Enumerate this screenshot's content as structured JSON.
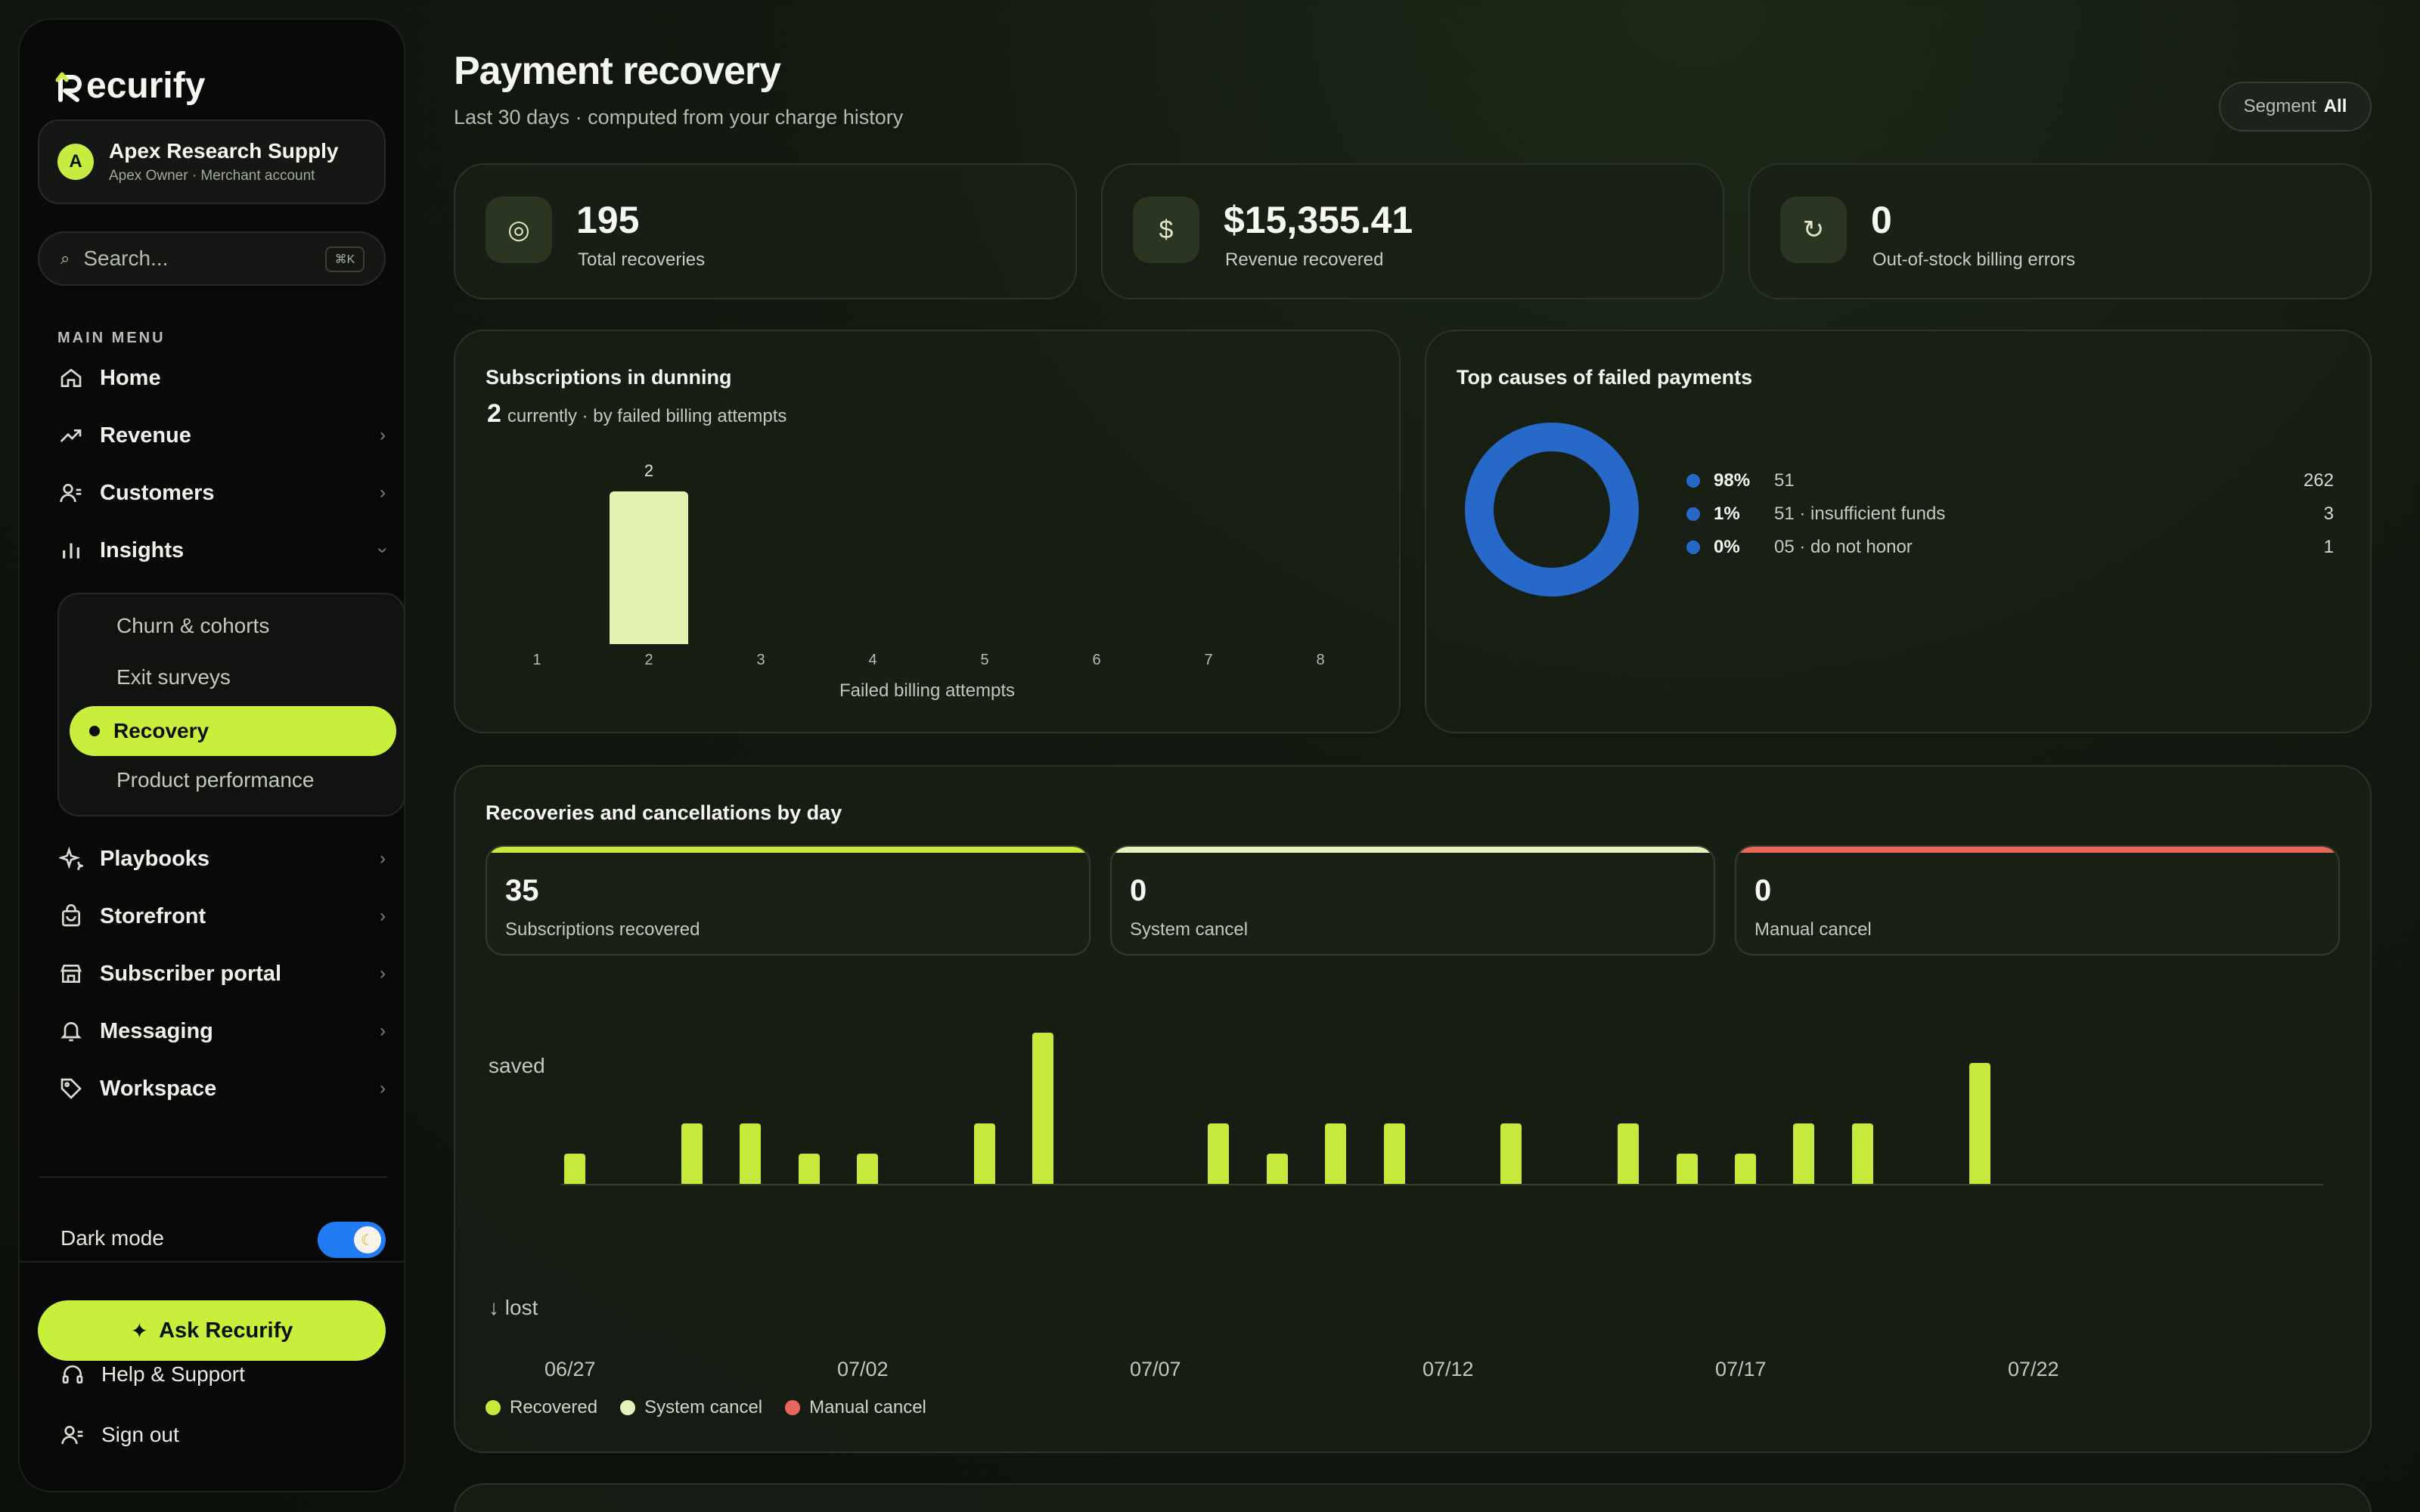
{
  "brand": {
    "name": "ecurify",
    "accent": "#c9ef3d"
  },
  "account": {
    "initial": "A",
    "name": "Apex Research Supply",
    "subtitle": "Apex Owner · Merchant account"
  },
  "search": {
    "placeholder": "Search...",
    "shortcut": "⌘K"
  },
  "sidebar": {
    "heading": "MAIN MENU",
    "items": [
      {
        "label": "Home",
        "icon": "home-icon"
      },
      {
        "label": "Revenue",
        "icon": "trending-up-icon"
      },
      {
        "label": "Customers",
        "icon": "users-icon"
      },
      {
        "label": "Insights",
        "icon": "bar-chart-icon"
      },
      {
        "label": "Playbooks",
        "icon": "sparkle-icon"
      },
      {
        "label": "Storefront",
        "icon": "bag-icon"
      },
      {
        "label": "Subscriber portal",
        "icon": "store-icon"
      },
      {
        "label": "Messaging",
        "icon": "bell-icon"
      },
      {
        "label": "Workspace",
        "icon": "tag-icon"
      }
    ],
    "insights_sub": [
      "Churn & cohorts",
      "Exit surveys",
      "Recovery",
      "Product performance"
    ],
    "dark_mode_label": "Dark mode",
    "dark_mode_on": true,
    "ask_label": "Ask Recurify",
    "help_label": "Help & Support",
    "signout_label": "Sign out"
  },
  "header": {
    "title": "Payment recovery",
    "subtitle": "Last 30 days · computed from your charge history",
    "segment_key": "Segment",
    "segment_value": "All"
  },
  "kpis": [
    {
      "value": "195",
      "label": "Total recoveries",
      "icon": "target-icon"
    },
    {
      "value": "$15,355.41",
      "label": "Revenue recovered",
      "icon": "dollar-icon"
    },
    {
      "value": "0",
      "label": "Out-of-stock billing errors",
      "icon": "refresh-icon"
    }
  ],
  "dunning": {
    "title": "Subscriptions in dunning",
    "count": "2",
    "count_suffix": "currently · by failed billing attempts",
    "xlabel": "Failed billing attempts",
    "bar_label": "2"
  },
  "causes": {
    "title": "Top causes of failed payments",
    "color": "#2669c9",
    "rows": [
      {
        "pct": "98%",
        "label": "51",
        "count": "262"
      },
      {
        "pct": "1%",
        "label": "51 · insufficient funds",
        "count": "3"
      },
      {
        "pct": "0%",
        "label": "05 · do not honor",
        "count": "1"
      }
    ]
  },
  "daily": {
    "title": "Recoveries and cancellations by day",
    "stats": [
      {
        "value": "35",
        "label": "Subscriptions recovered",
        "color": "#c5ea3c"
      },
      {
        "value": "0",
        "label": "System cancel",
        "color": "#e5f2bd"
      },
      {
        "value": "0",
        "label": "Manual cancel",
        "color": "#e8665a"
      }
    ],
    "saved_label": "saved",
    "lost_label": "↓ lost",
    "legend": [
      {
        "label": "Recovered",
        "color": "#c5ea3c"
      },
      {
        "label": "System cancel",
        "color": "#e5f2bd"
      },
      {
        "label": "Manual cancel",
        "color": "#e8665a"
      }
    ]
  },
  "chart_data": [
    {
      "type": "bar",
      "title": "Subscriptions in dunning",
      "xlabel": "Failed billing attempts",
      "ylabel": "",
      "categories": [
        "1",
        "2",
        "3",
        "4",
        "5",
        "6",
        "7",
        "8"
      ],
      "values": [
        0,
        2,
        0,
        0,
        0,
        0,
        0,
        0
      ]
    },
    {
      "type": "pie",
      "title": "Top causes of failed payments",
      "categories": [
        "51",
        "51 · insufficient funds",
        "05 · do not honor"
      ],
      "values": [
        262,
        3,
        1
      ],
      "percent": [
        98,
        1,
        0
      ]
    },
    {
      "type": "bar",
      "title": "Recoveries and cancellations by day",
      "x": [
        "06/27",
        "06/28",
        "06/29",
        "06/30",
        "07/01",
        "07/02",
        "07/03",
        "07/04",
        "07/05",
        "07/06",
        "07/07",
        "07/08",
        "07/09",
        "07/10",
        "07/11",
        "07/12",
        "07/13",
        "07/14",
        "07/15",
        "07/16",
        "07/17",
        "07/18",
        "07/19",
        "07/20",
        "07/21",
        "07/22",
        "07/23",
        "07/24",
        "07/25",
        "07/26",
        "07/27"
      ],
      "xticks": [
        "06/27",
        "07/02",
        "07/07",
        "07/12",
        "07/17",
        "07/22"
      ],
      "series": [
        {
          "name": "Recovered",
          "values": [
            1,
            0,
            2,
            2,
            1,
            1,
            0,
            2,
            5,
            0,
            0,
            2,
            1,
            2,
            2,
            0,
            2,
            0,
            2,
            1,
            1,
            2,
            2,
            0,
            4,
            0,
            0,
            0,
            0,
            0,
            0
          ]
        },
        {
          "name": "System cancel",
          "values": [
            0,
            0,
            0,
            0,
            0,
            0,
            0,
            0,
            0,
            0,
            0,
            0,
            0,
            0,
            0,
            0,
            0,
            0,
            0,
            0,
            0,
            0,
            0,
            0,
            0,
            0,
            0,
            0,
            0,
            0,
            0
          ]
        },
        {
          "name": "Manual cancel",
          "values": [
            0,
            0,
            0,
            0,
            0,
            0,
            0,
            0,
            0,
            0,
            0,
            0,
            0,
            0,
            0,
            0,
            0,
            0,
            0,
            0,
            0,
            0,
            0,
            0,
            0,
            0,
            0,
            0,
            0,
            0,
            0
          ]
        }
      ]
    }
  ]
}
